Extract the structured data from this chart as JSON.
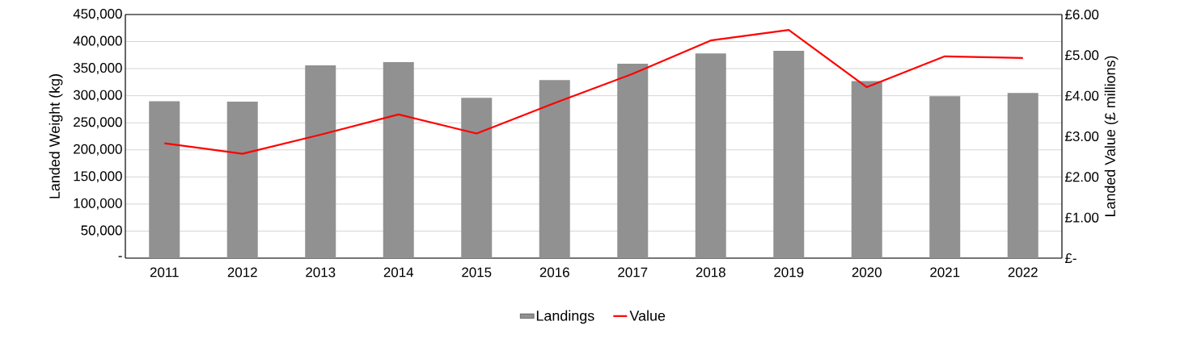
{
  "chart_data": {
    "type": "bar",
    "ylabel": "Landed Weight (kg)",
    "y2label": "Landed Value (£ millions)",
    "categories": [
      "2011",
      "2012",
      "2013",
      "2014",
      "2015",
      "2016",
      "2017",
      "2018",
      "2019",
      "2020",
      "2021",
      "2022"
    ],
    "series": [
      {
        "name": "Landings",
        "color": "#919191",
        "values": [
          290000,
          289000,
          356000,
          362000,
          296000,
          329000,
          359000,
          378000,
          383000,
          327000,
          299000,
          305000
        ]
      },
      {
        "name": "Value",
        "type": "line",
        "axis": "y2",
        "color": "#ff0000",
        "values": [
          2.83,
          2.57,
          3.04,
          3.54,
          3.07,
          3.82,
          4.54,
          5.36,
          5.62,
          4.21,
          4.97,
          4.93
        ]
      }
    ],
    "ylim": [
      0,
      450000
    ],
    "yticks": [
      {
        "value": 0,
        "label": "-"
      },
      {
        "value": 50000,
        "label": "50,000"
      },
      {
        "value": 100000,
        "label": "100,000"
      },
      {
        "value": 150000,
        "label": "150,000"
      },
      {
        "value": 200000,
        "label": "200,000"
      },
      {
        "value": 250000,
        "label": "250,000"
      },
      {
        "value": 300000,
        "label": "300,000"
      },
      {
        "value": 350000,
        "label": "350,000"
      },
      {
        "value": 400000,
        "label": "400,000"
      },
      {
        "value": 450000,
        "label": "450,000"
      }
    ],
    "y2lim": [
      0,
      6
    ],
    "y2ticks": [
      {
        "value": 0,
        "label": "£-"
      },
      {
        "value": 1,
        "label": "£1.00"
      },
      {
        "value": 2,
        "label": "£2.00"
      },
      {
        "value": 3,
        "label": "£3.00"
      },
      {
        "value": 4,
        "label": "£4.00"
      },
      {
        "value": 5,
        "label": "£5.00"
      },
      {
        "value": 6,
        "label": "£6.00"
      }
    ],
    "grid": "y",
    "legend": "bottom",
    "marker": "none",
    "line_style": "solid"
  }
}
